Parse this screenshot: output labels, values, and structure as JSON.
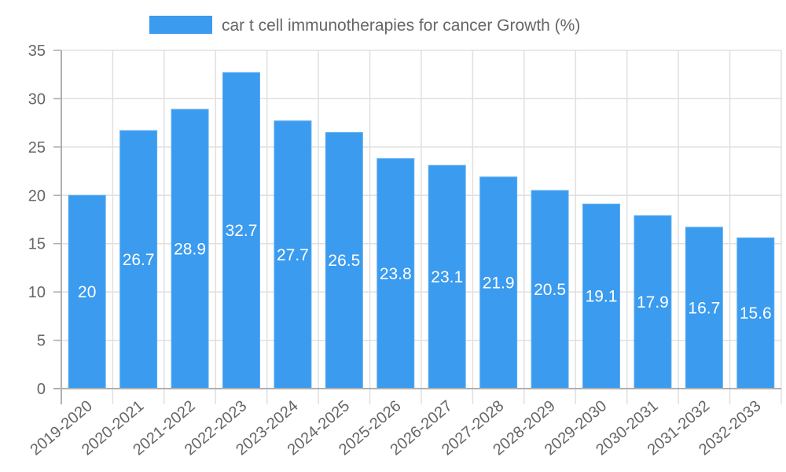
{
  "chart_data": {
    "type": "bar",
    "title": "",
    "xlabel": "",
    "ylabel": "",
    "legend": {
      "position": "top",
      "entries": [
        "car t cell immunotherapies for cancer Growth (%)"
      ]
    },
    "categories": [
      "2019-2020",
      "2020-2021",
      "2021-2022",
      "2022-2023",
      "2023-2024",
      "2024-2025",
      "2025-2026",
      "2026-2027",
      "2027-2028",
      "2028-2029",
      "2029-2030",
      "2030-2031",
      "2031-2032",
      "2032-2033"
    ],
    "series": [
      {
        "name": "car t cell immunotherapies for cancer Growth (%)",
        "values": [
          20,
          26.7,
          28.9,
          32.7,
          27.7,
          26.5,
          23.8,
          23.1,
          21.9,
          20.5,
          19.1,
          17.9,
          16.7,
          15.6
        ],
        "color": "#3a9bef"
      }
    ],
    "data_labels": [
      "20",
      "26.7",
      "28.9",
      "32.7",
      "27.7",
      "26.5",
      "23.8",
      "23.1",
      "21.9",
      "20.5",
      "19.1",
      "17.9",
      "16.7",
      "15.6"
    ],
    "ylim": [
      0,
      35
    ],
    "yticks": [
      0,
      5,
      10,
      15,
      20,
      25,
      30,
      35
    ],
    "grid": true
  },
  "colors": {
    "bar": "#3a9bef",
    "bar_border": "#60adf2",
    "grid": "#e0e0e0",
    "axis": "#b0b0b0",
    "text": "#666666"
  }
}
